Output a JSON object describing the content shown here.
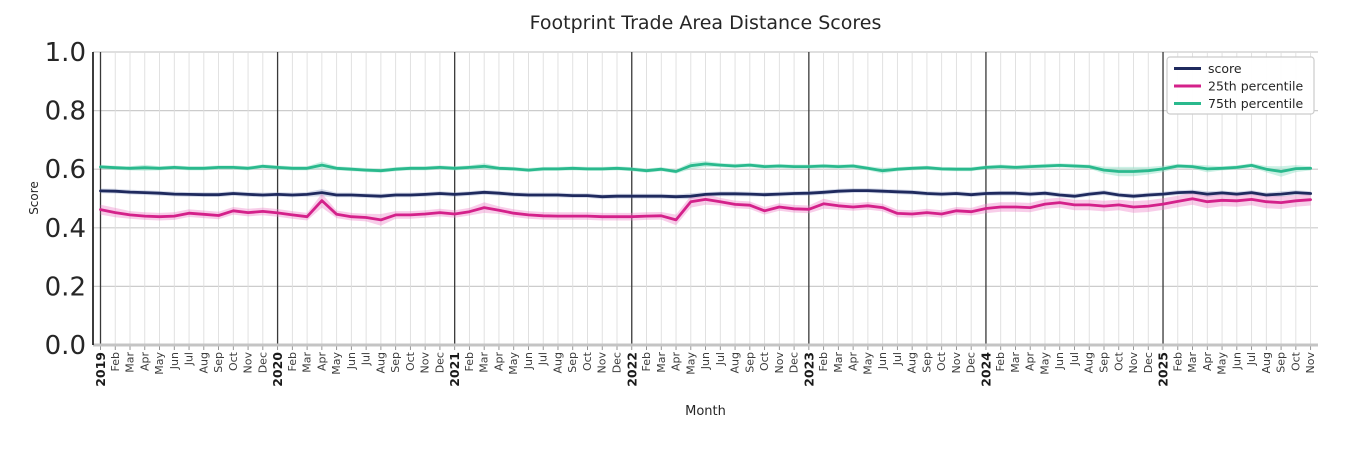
{
  "chart_data": {
    "type": "line",
    "title": "Footprint Trade Area Distance Scores",
    "xlabel": "Month",
    "ylabel": "Score",
    "ylim": [
      0.0,
      1.0
    ],
    "ytick_labels": [
      "0.0",
      "0.2",
      "0.4",
      "0.6",
      "0.8",
      "1.0"
    ],
    "ytick_values": [
      0.0,
      0.2,
      0.4,
      0.6,
      0.8,
      1.0
    ],
    "grid": true,
    "legend_position": "upper right",
    "legend_entries": [
      "score",
      "25th percentile",
      "75th percentile"
    ],
    "x_tick_labels": [
      "2019",
      "Feb",
      "Mar",
      "Apr",
      "May",
      "Jun",
      "Jul",
      "Aug",
      "Sep",
      "Oct",
      "Nov",
      "Dec",
      "2020",
      "Feb",
      "Mar",
      "Apr",
      "May",
      "Jun",
      "Jul",
      "Aug",
      "Sep",
      "Oct",
      "Nov",
      "Dec",
      "2021",
      "Feb",
      "Mar",
      "Apr",
      "May",
      "Jun",
      "Jul",
      "Aug",
      "Sep",
      "Oct",
      "Nov",
      "Dec",
      "2022",
      "Feb",
      "Mar",
      "Apr",
      "May",
      "Jun",
      "Jul",
      "Aug",
      "Sep",
      "Oct",
      "Nov",
      "Dec",
      "2023",
      "Feb",
      "Mar",
      "Apr",
      "May",
      "Jun",
      "Jul",
      "Aug",
      "Sep",
      "Oct",
      "Nov",
      "Dec",
      "2024",
      "Feb",
      "Mar",
      "Apr",
      "May",
      "Jun",
      "Jul",
      "Aug",
      "Sep",
      "Oct",
      "Nov",
      "Dec",
      "2025",
      "Feb",
      "Mar",
      "Apr",
      "May",
      "Jun",
      "Jul",
      "Aug",
      "Sep",
      "Oct",
      "Nov"
    ],
    "year_start_indices": [
      0,
      12,
      24,
      36,
      48,
      60,
      72
    ],
    "series": [
      {
        "name": "score",
        "color": "#1f2a5e",
        "band_color": "#7583b5",
        "band_opacity": 0.3,
        "band_halfwidth": 0.008,
        "band_halfwidth_overrides": {
          "15": 0.012,
          "40": 0.01,
          "75": 0.01,
          "80": 0.01
        },
        "values": [
          0.526,
          0.525,
          0.522,
          0.52,
          0.518,
          0.515,
          0.514,
          0.513,
          0.513,
          0.517,
          0.514,
          0.512,
          0.514,
          0.512,
          0.514,
          0.52,
          0.512,
          0.512,
          0.51,
          0.508,
          0.512,
          0.512,
          0.514,
          0.517,
          0.514,
          0.517,
          0.521,
          0.518,
          0.514,
          0.512,
          0.512,
          0.512,
          0.51,
          0.51,
          0.506,
          0.508,
          0.508,
          0.508,
          0.508,
          0.506,
          0.508,
          0.514,
          0.516,
          0.516,
          0.515,
          0.513,
          0.515,
          0.517,
          0.518,
          0.521,
          0.525,
          0.527,
          0.527,
          0.525,
          0.523,
          0.521,
          0.517,
          0.515,
          0.517,
          0.513,
          0.517,
          0.518,
          0.518,
          0.515,
          0.518,
          0.512,
          0.508,
          0.515,
          0.52,
          0.512,
          0.508,
          0.512,
          0.515,
          0.52,
          0.522,
          0.515,
          0.519,
          0.515,
          0.52,
          0.512,
          0.515,
          0.52,
          0.517
        ]
      },
      {
        "name": "25th percentile",
        "color": "#d4218a",
        "band_color": "#ee82c8",
        "band_opacity": 0.4,
        "band_halfwidth": 0.013,
        "band_halfwidth_overrides": {
          "0": 0.017,
          "1": 0.016,
          "15": 0.024,
          "19": 0.02,
          "26": 0.018,
          "39": 0.018,
          "40": 0.02,
          "41": 0.018,
          "49": 0.017,
          "60": 0.016,
          "61": 0.016,
          "62": 0.016,
          "63": 0.016,
          "64": 0.017,
          "65": 0.017,
          "66": 0.018,
          "67": 0.018,
          "68": 0.018,
          "69": 0.018,
          "70": 0.02,
          "71": 0.02,
          "72": 0.02,
          "73": 0.02,
          "74": 0.02,
          "75": 0.022,
          "76": 0.02,
          "77": 0.02,
          "78": 0.02,
          "79": 0.022,
          "80": 0.022,
          "81": 0.02,
          "82": 0.02
        },
        "values": [
          0.462,
          0.452,
          0.444,
          0.44,
          0.438,
          0.44,
          0.45,
          0.446,
          0.442,
          0.458,
          0.452,
          0.456,
          0.451,
          0.444,
          0.438,
          0.493,
          0.446,
          0.438,
          0.435,
          0.427,
          0.444,
          0.444,
          0.447,
          0.452,
          0.447,
          0.455,
          0.469,
          0.46,
          0.45,
          0.444,
          0.441,
          0.44,
          0.44,
          0.44,
          0.438,
          0.438,
          0.438,
          0.44,
          0.441,
          0.427,
          0.489,
          0.497,
          0.489,
          0.48,
          0.477,
          0.458,
          0.471,
          0.465,
          0.463,
          0.482,
          0.475,
          0.471,
          0.475,
          0.469,
          0.449,
          0.447,
          0.452,
          0.447,
          0.458,
          0.455,
          0.466,
          0.471,
          0.471,
          0.469,
          0.481,
          0.486,
          0.478,
          0.478,
          0.474,
          0.478,
          0.471,
          0.474,
          0.481,
          0.49,
          0.499,
          0.489,
          0.494,
          0.492,
          0.497,
          0.489,
          0.486,
          0.492,
          0.496
        ]
      },
      {
        "name": "75th percentile",
        "color": "#2ab98d",
        "band_color": "#8fdfc6",
        "band_opacity": 0.45,
        "band_halfwidth": 0.007,
        "band_halfwidth_overrides": {
          "3": 0.01,
          "15": 0.012,
          "26": 0.01,
          "40": 0.012,
          "41": 0.01,
          "53": 0.01,
          "68": 0.012,
          "69": 0.016,
          "70": 0.016,
          "71": 0.013,
          "72": 0.011,
          "75": 0.012,
          "79": 0.011,
          "80": 0.018,
          "81": 0.012
        },
        "values": [
          0.608,
          0.605,
          0.603,
          0.605,
          0.603,
          0.606,
          0.603,
          0.603,
          0.606,
          0.606,
          0.603,
          0.61,
          0.606,
          0.603,
          0.603,
          0.614,
          0.603,
          0.6,
          0.597,
          0.595,
          0.6,
          0.603,
          0.603,
          0.606,
          0.603,
          0.606,
          0.61,
          0.603,
          0.601,
          0.597,
          0.601,
          0.601,
          0.603,
          0.601,
          0.601,
          0.603,
          0.6,
          0.595,
          0.6,
          0.592,
          0.612,
          0.618,
          0.614,
          0.611,
          0.614,
          0.609,
          0.611,
          0.609,
          0.609,
          0.611,
          0.609,
          0.611,
          0.603,
          0.595,
          0.6,
          0.603,
          0.605,
          0.601,
          0.6,
          0.6,
          0.606,
          0.609,
          0.606,
          0.609,
          0.611,
          0.613,
          0.611,
          0.609,
          0.597,
          0.592,
          0.592,
          0.595,
          0.601,
          0.611,
          0.609,
          0.601,
          0.603,
          0.606,
          0.613,
          0.6,
          0.592,
          0.602,
          0.603
        ]
      }
    ],
    "style": {
      "grid_color": "#dedede",
      "ygrid_color": "#cccccc",
      "year_line_color": "#383838",
      "bottom_spine_color": "#c4c4c4",
      "left_spine_color": "#262626",
      "tick_label_color": "#3a3a3a",
      "year_label_color": "#1a1a1a",
      "legend_border_color": "#cccccc",
      "legend_bg_color": "#ffffff",
      "text_color": "#262626"
    }
  }
}
